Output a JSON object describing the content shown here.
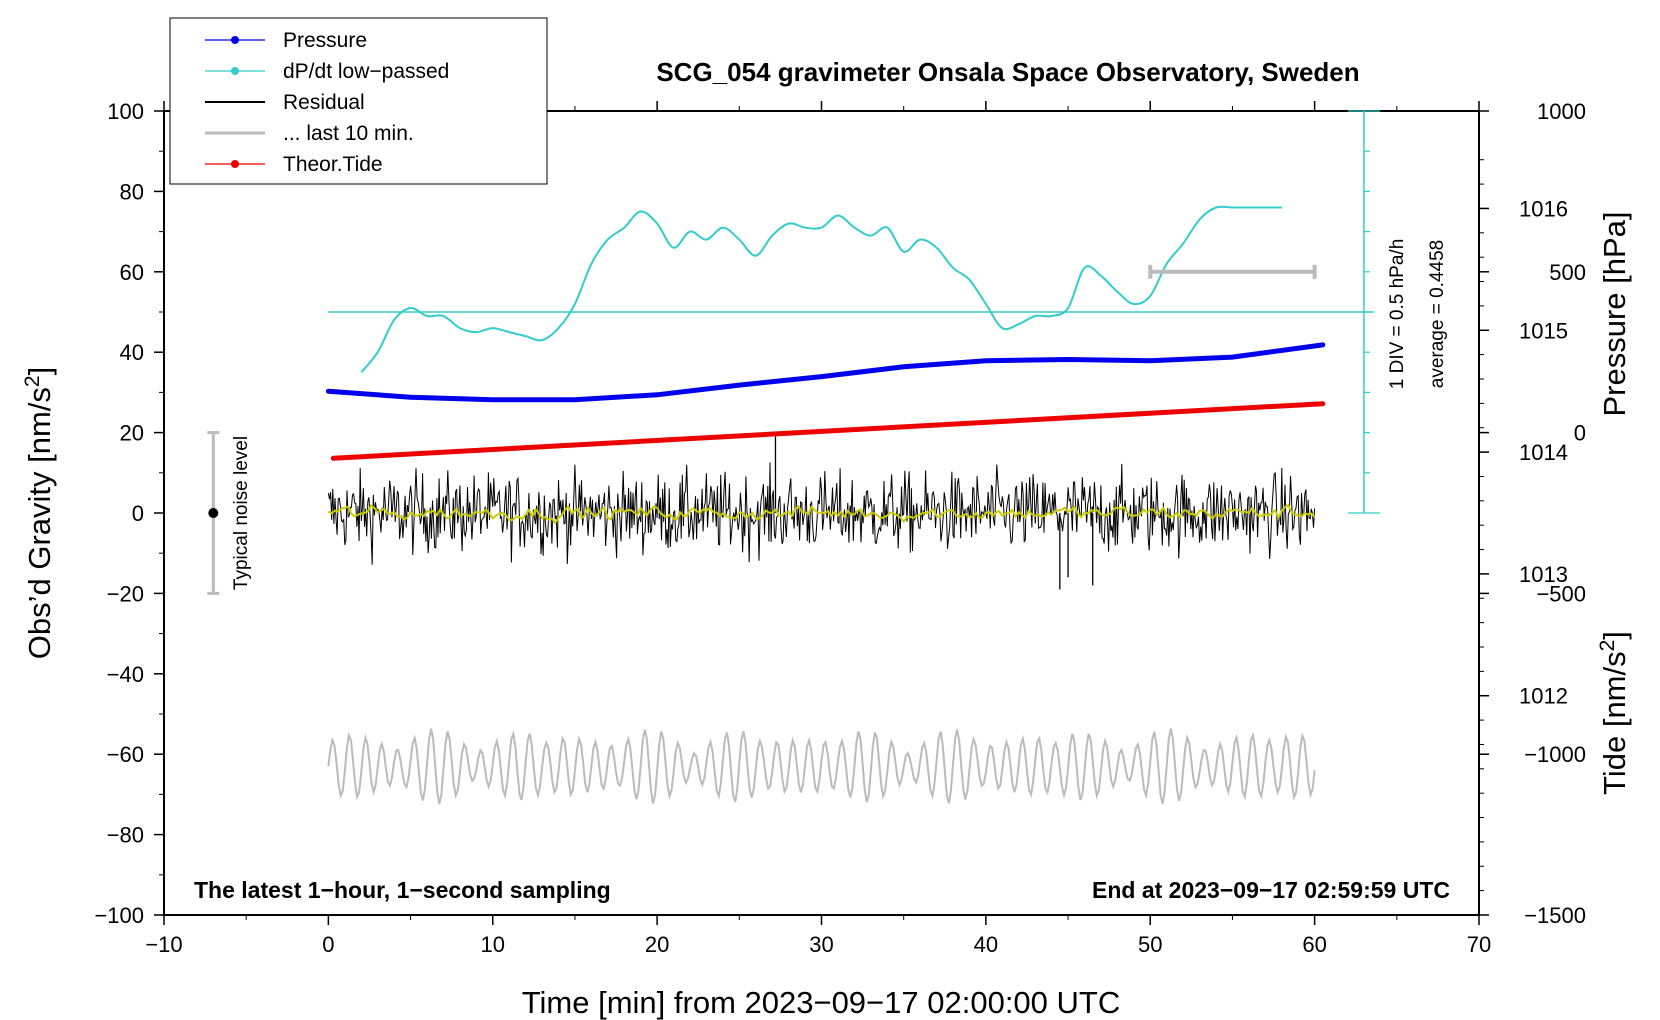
{
  "chart_data": {
    "type": "line",
    "title": "SCG_054 gravimeter Onsala Space Observatory, Sweden",
    "xlabel": "Time [min] from 2023−09−17 02:00:00 UTC",
    "ylabel_left_main": "Obs’d Gravity [nm/s",
    "ylabel_left_sup": "2",
    "ylabel_left_end": "]",
    "ylabel_right_pressure": "Pressure [hPa]",
    "ylabel_right_tide_main": "Tide [nm/s",
    "ylabel_right_tide_sup": "2",
    "ylabel_right_tide_end": "]",
    "xlim": [
      -10,
      70
    ],
    "ylim_left": [
      -100,
      100
    ],
    "pressure_axis": {
      "range": [
        1010.2,
        1016.8
      ]
    },
    "tide_axis": {
      "range": [
        -1500,
        1000
      ]
    },
    "x_ticks": [
      -10,
      0,
      10,
      20,
      30,
      40,
      50,
      60,
      70
    ],
    "x_tick_labels": [
      "−10",
      "0",
      "10",
      "20",
      "30",
      "40",
      "50",
      "60",
      "70"
    ],
    "y_left_ticks": [
      -100,
      -80,
      -60,
      -40,
      -20,
      0,
      20,
      40,
      60,
      80,
      100
    ],
    "y_left_tick_labels": [
      "−100",
      "−80",
      "−60",
      "−40",
      "−20",
      "0",
      "20",
      "40",
      "60",
      "80",
      "100"
    ],
    "pressure_ticks": [
      1012,
      1013,
      1014,
      1015,
      1016
    ],
    "pressure_tick_labels": [
      "1012",
      "1013",
      "1014",
      "1015",
      "1016"
    ],
    "tide_ticks": [
      -1500,
      -1000,
      -500,
      0,
      500,
      1000
    ],
    "tide_tick_labels": [
      "−1500",
      "−1000",
      "−500",
      "0",
      "500",
      "1000"
    ],
    "legend": [
      {
        "label": "Pressure",
        "color": "#0000ee",
        "marker": true
      },
      {
        "label": "dP/dt low−passed",
        "color": "#33cccc",
        "marker": true
      },
      {
        "label": "Residual",
        "color": "#000000",
        "marker": false
      },
      {
        "label": "... last 10 min.",
        "color": "#bbbbbb",
        "marker": false
      },
      {
        "label": "Theor.Tide",
        "color": "#ee0000",
        "marker": true
      }
    ],
    "series": [
      {
        "name": "Pressure",
        "axis": "pressure",
        "color": "#0000ee",
        "x": [
          0,
          5,
          10,
          15,
          20,
          25,
          30,
          35,
          40,
          45,
          50,
          55,
          60.5
        ],
        "values": [
          1014.5,
          1014.45,
          1014.43,
          1014.43,
          1014.47,
          1014.55,
          1014.62,
          1014.7,
          1014.75,
          1014.76,
          1014.75,
          1014.78,
          1014.88
        ]
      },
      {
        "name": "dP/dt low−passed",
        "axis": "gravity",
        "color": "#33cccc",
        "x": [
          2,
          3,
          4,
          5,
          6,
          7,
          8,
          9,
          10,
          11,
          12,
          13,
          14,
          15,
          16,
          17,
          18,
          19,
          20,
          21,
          22,
          23,
          24,
          25,
          26,
          27,
          28,
          29,
          30,
          31,
          32,
          33,
          34,
          35,
          36,
          37,
          38,
          39,
          40,
          41,
          42,
          43,
          44,
          45,
          46,
          47,
          48,
          49,
          50,
          51,
          52,
          53,
          54,
          55,
          56,
          57,
          58
        ],
        "values": [
          35,
          40,
          48,
          51,
          49,
          49,
          46,
          45,
          46,
          45,
          44,
          43,
          46,
          52,
          62,
          68,
          71,
          75,
          72,
          66,
          70,
          68,
          71,
          68,
          64,
          69,
          72,
          71,
          71,
          74,
          71,
          69,
          71,
          65,
          68,
          66,
          61,
          58,
          52,
          46,
          47,
          49,
          49,
          51,
          61,
          59,
          55,
          52,
          54,
          62,
          67,
          73,
          76,
          76,
          76,
          76,
          76
        ]
      },
      {
        "name": "Residual",
        "axis": "gravity",
        "color": "#000000",
        "x_range": [
          0,
          60
        ],
        "mean": 0,
        "amplitude": 9,
        "spike_x": [
          27.2,
          44.5,
          45,
          46.5
        ],
        "spike_values": [
          19,
          -19,
          -16,
          -18
        ]
      },
      {
        "name": "Residual smoothed",
        "axis": "gravity",
        "color": "#cccc00",
        "x_range": [
          0,
          60
        ],
        "mean": 0,
        "amplitude": 1.5
      },
      {
        "name": "... last 10 min.",
        "axis": "gravity",
        "color": "#bbbbbb",
        "x_range": [
          0,
          60
        ],
        "mean": -63,
        "amplitude": 8,
        "min": -78,
        "max": -47
      },
      {
        "name": "Theor.Tide",
        "axis": "tide",
        "color": "#ee0000",
        "x": [
          0.3,
          60.5
        ],
        "values": [
          -80,
          90
        ]
      }
    ],
    "dpdt_scale": {
      "reference_line_y": 50,
      "bar_y_range": [
        0,
        100
      ],
      "bar_x": 63,
      "label": "1 DIV = 0.5 hPa/h",
      "average_label": "average = 0.4458"
    },
    "noise_bar": {
      "x": -7,
      "y_range": [
        -20,
        20
      ],
      "center": 0,
      "label": "Typical noise level"
    },
    "last10_marker": {
      "x_range": [
        50,
        60
      ],
      "tide_value": 500
    },
    "note_left": "The latest 1−hour, 1−second sampling",
    "note_right": "End at 2023−09−17 02:59:59 UTC"
  }
}
